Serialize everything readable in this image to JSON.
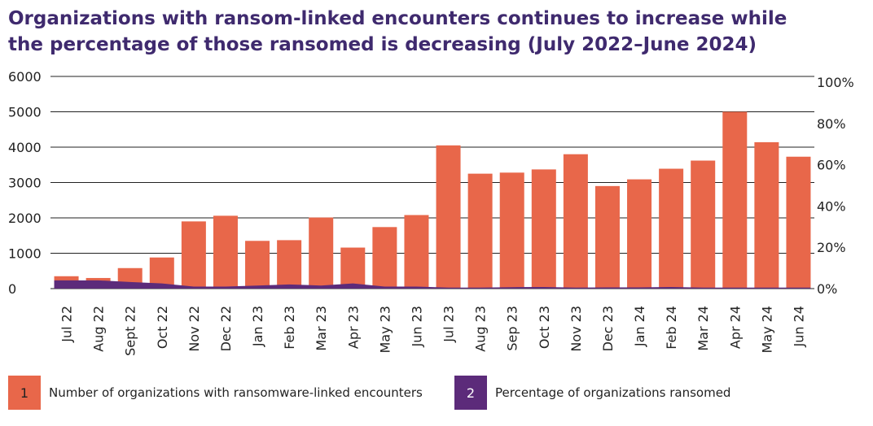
{
  "chart_data": {
    "type": "bar",
    "title": "Organizations with ransom-linked encounters continues to increase while",
    "subtitle": "the percentage of those ransomed is decreasing (July 2022–June 2024)",
    "categories": [
      "Jul 22",
      "Aug 22",
      "Sept 22",
      "Oct 22",
      "Nov 22",
      "Dec 22",
      "Jan 23",
      "Feb 23",
      "Mar 23",
      "Apr 23",
      "May 23",
      "Jun 23",
      "Jul 23",
      "Aug 23",
      "Sep 23",
      "Oct 23",
      "Nov 23",
      "Dec 23",
      "Jan 24",
      "Feb 24",
      "Mar 24",
      "Apr 24",
      "May 24",
      "Jun 24"
    ],
    "series": [
      {
        "name": "Number of organizations with ransomware-linked encounters",
        "key": "1",
        "color": "#e8674a",
        "type": "bar",
        "values": [
          350,
          300,
          580,
          880,
          1900,
          2060,
          1350,
          1370,
          2010,
          1160,
          1740,
          2080,
          4050,
          3250,
          3280,
          3370,
          3800,
          2900,
          3090,
          3390,
          3620,
          5000,
          4140,
          3730
        ]
      },
      {
        "name": "Percentage of organizations ransomed",
        "key": "2",
        "color": "#5c2b7a",
        "type": "area",
        "axis": "y2",
        "values": [
          4,
          4,
          3.2,
          2.5,
          1,
          1,
          1.5,
          2,
          1.5,
          2.5,
          1,
          1,
          0.5,
          0.5,
          0.7,
          0.8,
          0.5,
          0.6,
          0.6,
          0.8,
          0.5,
          0.5,
          0.5,
          0.5
        ]
      }
    ],
    "ylim": [
      0,
      6000
    ],
    "yticks": [
      0,
      1000,
      2000,
      3000,
      4000,
      5000,
      6000
    ],
    "y2lim": [
      0,
      100
    ],
    "y2ticks": [
      {
        "value": 0,
        "label": "0%"
      },
      {
        "value": 20,
        "label": "20%"
      },
      {
        "value": 40,
        "label": "40%"
      },
      {
        "value": 60,
        "label": "60%"
      },
      {
        "value": 80,
        "label": "80%"
      },
      {
        "value": 100,
        "label": "100%"
      }
    ],
    "grid": true
  }
}
